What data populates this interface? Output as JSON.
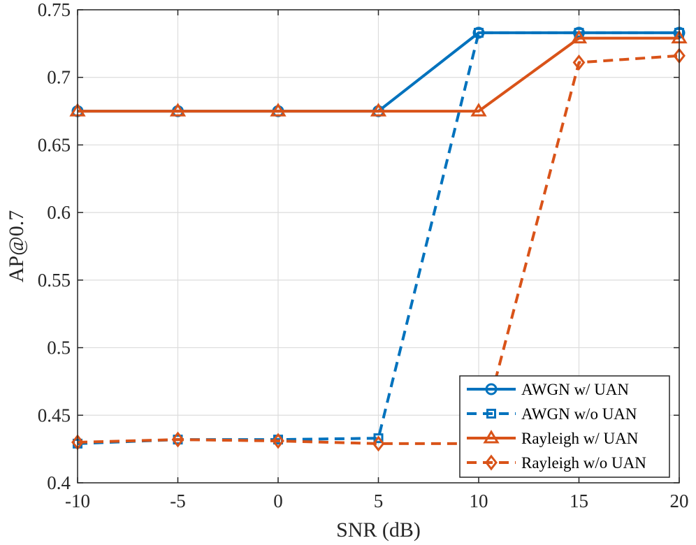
{
  "chart_data": {
    "type": "line",
    "title": "",
    "xlabel": "SNR (dB)",
    "ylabel": "AP@0.7",
    "x": [
      -10,
      -5,
      0,
      5,
      10,
      15,
      20
    ],
    "xlim": [
      -10,
      20
    ],
    "ylim": [
      0.4,
      0.75
    ],
    "xticks": [
      -10,
      -5,
      0,
      5,
      10,
      15,
      20
    ],
    "xtick_labels": [
      "-10",
      "-5",
      "0",
      "5",
      "10",
      "15",
      "20"
    ],
    "yticks": [
      0.4,
      0.45,
      0.5,
      0.55,
      0.6,
      0.65,
      0.7,
      0.75
    ],
    "ytick_labels": [
      "0.4",
      "0.45",
      "0.5",
      "0.55",
      "0.6",
      "0.65",
      "0.7",
      "0.75"
    ],
    "grid": true,
    "legend_position": "bottom-right",
    "series": [
      {
        "name": "AWGN w/ UAN",
        "values": [
          0.675,
          0.675,
          0.675,
          0.675,
          0.733,
          0.733,
          0.733
        ],
        "color": "#0072BD",
        "dash": "solid",
        "marker": "circle"
      },
      {
        "name": "AWGN w/o UAN",
        "values": [
          0.429,
          0.432,
          0.432,
          0.433,
          0.733,
          0.733,
          0.733
        ],
        "color": "#0072BD",
        "dash": "dashed",
        "marker": "square"
      },
      {
        "name": "Rayleigh w/ UAN",
        "values": [
          0.675,
          0.675,
          0.675,
          0.675,
          0.675,
          0.729,
          0.729
        ],
        "color": "#D95319",
        "dash": "solid",
        "marker": "triangle"
      },
      {
        "name": "Rayleigh w/o UAN",
        "values": [
          0.43,
          0.432,
          0.431,
          0.429,
          0.429,
          0.711,
          0.716
        ],
        "color": "#D95319",
        "dash": "dashed",
        "marker": "diamond"
      }
    ]
  }
}
